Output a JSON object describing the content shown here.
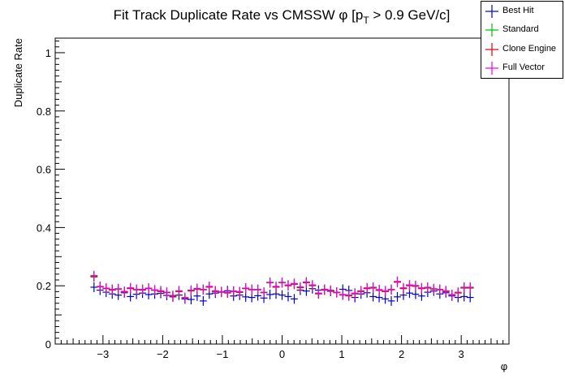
{
  "chart_data": {
    "type": "scatter",
    "title_main": "Fit Track Duplicate Rate vs CMSSW ",
    "title_phi": "φ",
    "title_bracket_open": " [p",
    "title_sub": "T",
    "title_rest": " > 0.9 GeV/c]",
    "xlabel": "φ",
    "ylabel": "Duplicate Rate",
    "xlim": [
      -3.8,
      3.8
    ],
    "ylim": [
      0,
      1.05
    ],
    "xticks": [
      -3,
      -2,
      -1,
      0,
      1,
      2,
      3
    ],
    "xtick_labels": [
      "−3",
      "−2",
      "−1",
      "0",
      "1",
      "2",
      "3"
    ],
    "yticks": [
      0,
      0.2,
      0.4,
      0.6,
      0.8,
      1
    ],
    "ytick_labels": [
      "0",
      "0.2",
      "0.4",
      "0.6",
      "0.8",
      "1"
    ],
    "legend_position": "top-right",
    "grid": false,
    "bin_count": 63,
    "bin_range": [
      -3.15,
      3.15
    ],
    "series": [
      {
        "name": "Best Hit",
        "color": "#0000cc",
        "values": [
          0.195,
          0.185,
          0.178,
          0.172,
          0.168,
          0.176,
          0.163,
          0.171,
          0.175,
          0.17,
          0.172,
          0.174,
          0.167,
          0.162,
          0.168,
          0.155,
          0.153,
          0.165,
          0.148,
          0.172,
          0.175,
          0.178,
          0.183,
          0.165,
          0.168,
          0.162,
          0.16,
          0.166,
          0.158,
          0.17,
          0.172,
          0.168,
          0.163,
          0.155,
          0.185,
          0.182,
          0.19,
          0.185,
          0.188,
          0.181,
          0.178,
          0.188,
          0.184,
          0.16,
          0.172,
          0.176,
          0.163,
          0.16,
          0.155,
          0.148,
          0.162,
          0.168,
          0.175,
          0.171,
          0.165,
          0.178,
          0.182,
          0.172,
          0.176,
          0.165,
          0.16,
          0.163,
          0.16
        ]
      },
      {
        "name": "Standard",
        "color": "#00bb00",
        "values": [
          0.23,
          0.196,
          0.19,
          0.185,
          0.188,
          0.178,
          0.19,
          0.186,
          0.185,
          0.19,
          0.184,
          0.18,
          0.176,
          0.164,
          0.18,
          0.158,
          0.182,
          0.188,
          0.186,
          0.195,
          0.18,
          0.178,
          0.175,
          0.18,
          0.177,
          0.19,
          0.186,
          0.186,
          0.176,
          0.21,
          0.195,
          0.21,
          0.2,
          0.205,
          0.193,
          0.21,
          0.2,
          0.172,
          0.185,
          0.182,
          0.176,
          0.168,
          0.165,
          0.172,
          0.18,
          0.19,
          0.192,
          0.184,
          0.18,
          0.186,
          0.212,
          0.19,
          0.2,
          0.198,
          0.19,
          0.192,
          0.188,
          0.186,
          0.18,
          0.168,
          0.175,
          0.192,
          0.192
        ]
      },
      {
        "name": "Clone Engine",
        "color": "#dd0000",
        "values": [
          0.232,
          0.197,
          0.191,
          0.186,
          0.189,
          0.179,
          0.191,
          0.187,
          0.186,
          0.191,
          0.185,
          0.181,
          0.177,
          0.165,
          0.181,
          0.159,
          0.183,
          0.189,
          0.187,
          0.196,
          0.181,
          0.179,
          0.176,
          0.181,
          0.178,
          0.191,
          0.187,
          0.187,
          0.177,
          0.211,
          0.196,
          0.211,
          0.201,
          0.206,
          0.194,
          0.211,
          0.201,
          0.173,
          0.186,
          0.183,
          0.177,
          0.169,
          0.166,
          0.173,
          0.181,
          0.191,
          0.193,
          0.185,
          0.181,
          0.187,
          0.213,
          0.191,
          0.201,
          0.199,
          0.191,
          0.193,
          0.189,
          0.187,
          0.181,
          0.169,
          0.176,
          0.193,
          0.193
        ]
      },
      {
        "name": "Full Vector",
        "color": "#ee00ee",
        "values": [
          0.235,
          0.198,
          0.192,
          0.188,
          0.19,
          0.181,
          0.193,
          0.188,
          0.188,
          0.192,
          0.186,
          0.183,
          0.178,
          0.167,
          0.183,
          0.16,
          0.185,
          0.191,
          0.188,
          0.198,
          0.183,
          0.18,
          0.178,
          0.182,
          0.18,
          0.192,
          0.188,
          0.188,
          0.178,
          0.212,
          0.198,
          0.212,
          0.203,
          0.208,
          0.196,
          0.213,
          0.203,
          0.175,
          0.188,
          0.185,
          0.178,
          0.17,
          0.168,
          0.175,
          0.183,
          0.193,
          0.195,
          0.187,
          0.183,
          0.188,
          0.215,
          0.193,
          0.203,
          0.201,
          0.193,
          0.195,
          0.19,
          0.188,
          0.183,
          0.17,
          0.178,
          0.195,
          0.195
        ]
      }
    ]
  }
}
